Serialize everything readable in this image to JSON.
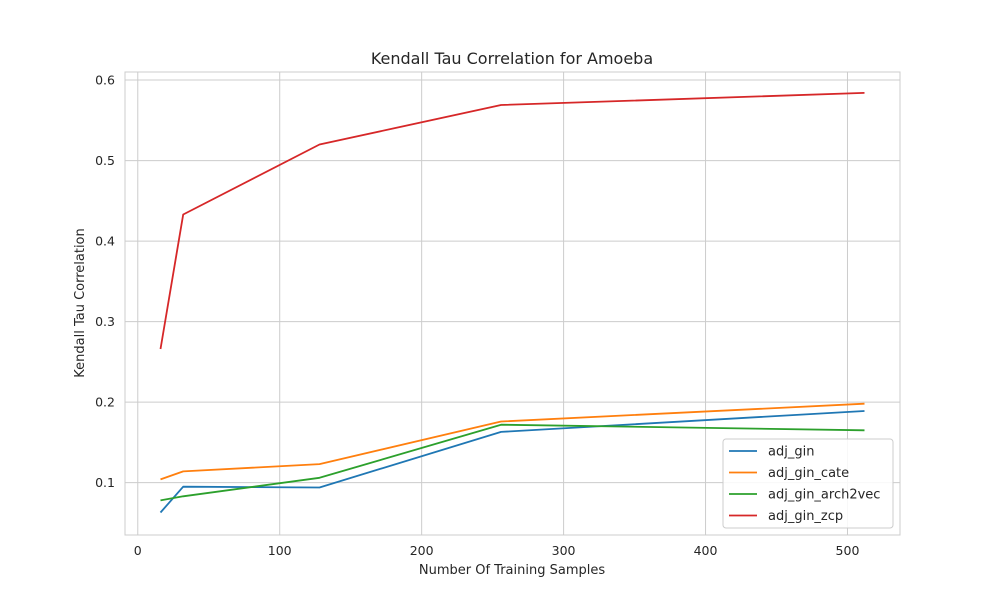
{
  "chart_data": {
    "type": "line",
    "title": "Kendall Tau Correlation for Amoeba",
    "xlabel": "Number Of Training Samples",
    "ylabel": "Kendall Tau Correlation",
    "x": [
      16,
      32,
      128,
      256,
      512
    ],
    "xlim": [
      -9,
      537
    ],
    "ylim": [
      0.035,
      0.61
    ],
    "xticks": [
      0,
      100,
      200,
      300,
      400,
      500
    ],
    "yticks": [
      0.1,
      0.2,
      0.3,
      0.4,
      0.5,
      0.6
    ],
    "xtick_labels": [
      "0",
      "100",
      "200",
      "300",
      "400",
      "500"
    ],
    "ytick_labels": [
      "0.1",
      "0.2",
      "0.3",
      "0.4",
      "0.5",
      "0.6"
    ],
    "grid": true,
    "legend_position": "lower-right",
    "series": [
      {
        "name": "adj_gin",
        "color": "#1f77b4",
        "values": [
          0.063,
          0.095,
          0.094,
          0.163,
          0.189
        ]
      },
      {
        "name": "adj_gin_cate",
        "color": "#ff7f0e",
        "values": [
          0.104,
          0.114,
          0.123,
          0.176,
          0.198
        ]
      },
      {
        "name": "adj_gin_arch2vec",
        "color": "#2ca02c",
        "values": [
          0.078,
          0.083,
          0.106,
          0.172,
          0.165
        ]
      },
      {
        "name": "adj_gin_zcp",
        "color": "#d62728",
        "values": [
          0.266,
          0.433,
          0.52,
          0.569,
          0.584
        ]
      }
    ]
  }
}
